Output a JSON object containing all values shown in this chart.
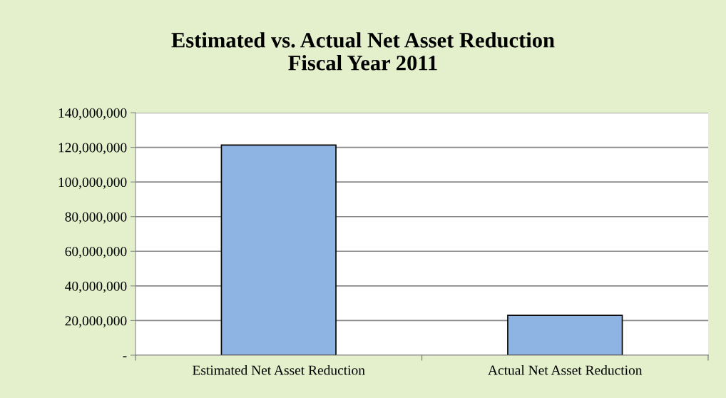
{
  "chart_data": {
    "type": "bar",
    "title": "Estimated vs. Actual Net Asset Reduction\nFiscal Year 2011",
    "categories": [
      "Estimated Net Asset Reduction",
      "Actual Net Asset Reduction"
    ],
    "values": [
      121300000,
      23000000
    ],
    "color": "#8eb4e3",
    "ylim": [
      0,
      140000000
    ],
    "yticks": [
      {
        "value": 0,
        "label": "-"
      },
      {
        "value": 20000000,
        "label": "20,000,000"
      },
      {
        "value": 40000000,
        "label": "40,000,000"
      },
      {
        "value": 60000000,
        "label": "60,000,000"
      },
      {
        "value": 80000000,
        "label": "80,000,000"
      },
      {
        "value": 100000000,
        "label": "100,000,000"
      },
      {
        "value": 120000000,
        "label": "120,000,000"
      },
      {
        "value": 140000000,
        "label": "140,000,000"
      }
    ],
    "grid": "y"
  }
}
